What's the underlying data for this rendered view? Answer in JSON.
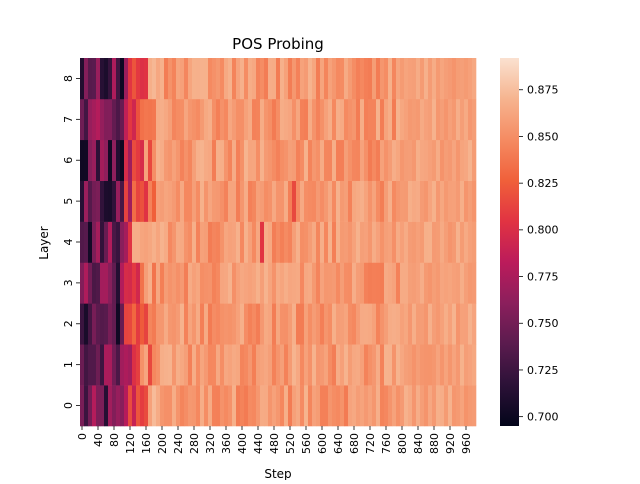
{
  "chart_data": {
    "type": "heatmap",
    "title": "POS Probing",
    "xlabel": "Step",
    "ylabel": "Layer",
    "layers": [
      0,
      1,
      2,
      3,
      4,
      5,
      6,
      7,
      8
    ],
    "steps_start": 0,
    "steps_end": 980,
    "step_interval": 10,
    "x_tick_labels": [
      "0",
      "40",
      "80",
      "120",
      "160",
      "200",
      "240",
      "280",
      "320",
      "360",
      "400",
      "440",
      "480",
      "520",
      "560",
      "600",
      "640",
      "680",
      "720",
      "760",
      "800",
      "840",
      "880",
      "920",
      "960"
    ],
    "colorbar": {
      "vmin": 0.695,
      "vmax": 0.892,
      "ticks": [
        0.7,
        0.725,
        0.75,
        0.775,
        0.8,
        0.825,
        0.85,
        0.875
      ],
      "tick_labels": [
        "0.700",
        "0.725",
        "0.750",
        "0.775",
        "0.800",
        "0.825",
        "0.850",
        "0.875"
      ],
      "colormap": "rocket",
      "colors": [
        "#03051a",
        "#2b1137",
        "#5a1b4e",
        "#8b1f5c",
        "#bb1b5b",
        "#e13342",
        "#f0603a",
        "#f58b62",
        "#f6b48f",
        "#fae1d0"
      ]
    },
    "value_profile": {
      "segments": [
        {
          "step_from": 0,
          "step_to": 110,
          "range": [
            0.7,
            0.78
          ]
        },
        {
          "step_from": 110,
          "step_to": 190,
          "range": [
            0.78,
            0.86
          ]
        },
        {
          "step_from": 190,
          "step_to": 980,
          "range": [
            0.84,
            0.87
          ]
        }
      ],
      "note_outliers": "isolated lower cells near 0.80-0.82 at steps ~450 (layer 4) and ~530 (layer 5)"
    }
  }
}
